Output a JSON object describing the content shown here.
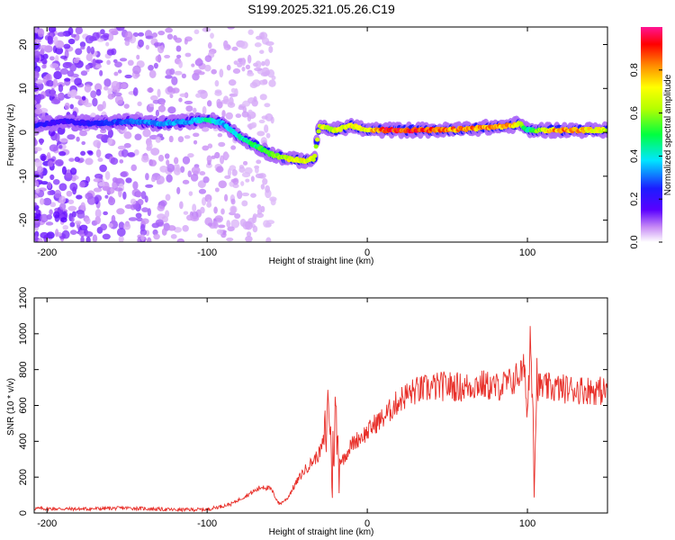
{
  "title": "S199.2025.321.05.26.C19",
  "chart_data": [
    {
      "type": "heatmap",
      "name": "spectrogram",
      "xlabel": "Height of straight line (km)",
      "ylabel": "Frequency (Hz)",
      "xlim": [
        -208,
        150
      ],
      "ylim": [
        -25,
        24
      ],
      "xticks": [
        -200,
        -100,
        0,
        100
      ],
      "yticks": [
        -20,
        -10,
        0,
        10,
        20
      ],
      "colorbar": {
        "label": "Normalized spectral amplitude",
        "range": [
          0,
          1
        ],
        "ticks": [
          "0.0",
          "0.2",
          "0.4",
          "0.6",
          "0.8"
        ],
        "tick_values": [
          0,
          0.2,
          0.4,
          0.6,
          0.8
        ]
      },
      "ridge": {
        "x": [
          -208,
          -190,
          -170,
          -150,
          -130,
          -110,
          -100,
          -90,
          -80,
          -70,
          -60,
          -50,
          -40,
          -33,
          -30,
          -20,
          -10,
          0,
          10,
          30,
          50,
          70,
          90,
          95,
          100,
          120,
          150
        ],
        "freq": [
          1.5,
          2.5,
          2.0,
          2.5,
          2.0,
          2.5,
          3.0,
          2.0,
          -1.0,
          -3.0,
          -5.0,
          -6.0,
          -6.5,
          -6.0,
          1.5,
          0.5,
          1.5,
          0.5,
          0.5,
          0.5,
          0.5,
          1.0,
          1.5,
          2.0,
          0.5,
          0.5,
          0.5
        ],
        "amp": [
          0.25,
          0.2,
          0.25,
          0.3,
          0.35,
          0.35,
          0.45,
          0.35,
          0.45,
          0.5,
          0.6,
          0.7,
          0.75,
          0.7,
          0.7,
          0.7,
          0.75,
          0.7,
          0.95,
          0.95,
          0.85,
          0.85,
          0.8,
          0.7,
          0.45,
          0.9,
          0.7
        ]
      }
    },
    {
      "type": "line",
      "name": "snr",
      "xlabel": "Height of straight line (km)",
      "ylabel": "SNR (10 * v/v)",
      "xlim": [
        -208,
        150
      ],
      "ylim": [
        0,
        1200
      ],
      "xticks": [
        -200,
        -100,
        0,
        100
      ],
      "yticks": [
        0,
        200,
        400,
        600,
        800,
        1000,
        1200
      ],
      "color": "#e8302a",
      "series": [
        {
          "name": "SNR",
          "x": [
            -208,
            -180,
            -150,
            -120,
            -100,
            -85,
            -75,
            -65,
            -60,
            -55,
            -50,
            -45,
            -40,
            -35,
            -30,
            -26,
            -24,
            -22,
            -20,
            -18,
            -15,
            -10,
            -5,
            0,
            5,
            10,
            15,
            20,
            25,
            30,
            40,
            50,
            60,
            70,
            80,
            90,
            98,
            100,
            102,
            103,
            104,
            106,
            110,
            130,
            150
          ],
          "y": [
            25,
            22,
            28,
            18,
            20,
            50,
            100,
            150,
            130,
            50,
            80,
            160,
            230,
            280,
            330,
            430,
            650,
            200,
            560,
            300,
            300,
            380,
            420,
            450,
            500,
            530,
            580,
            630,
            660,
            680,
            700,
            710,
            700,
            720,
            700,
            730,
            800,
            560,
            1000,
            900,
            300,
            710,
            700,
            690,
            680
          ]
        }
      ]
    }
  ]
}
